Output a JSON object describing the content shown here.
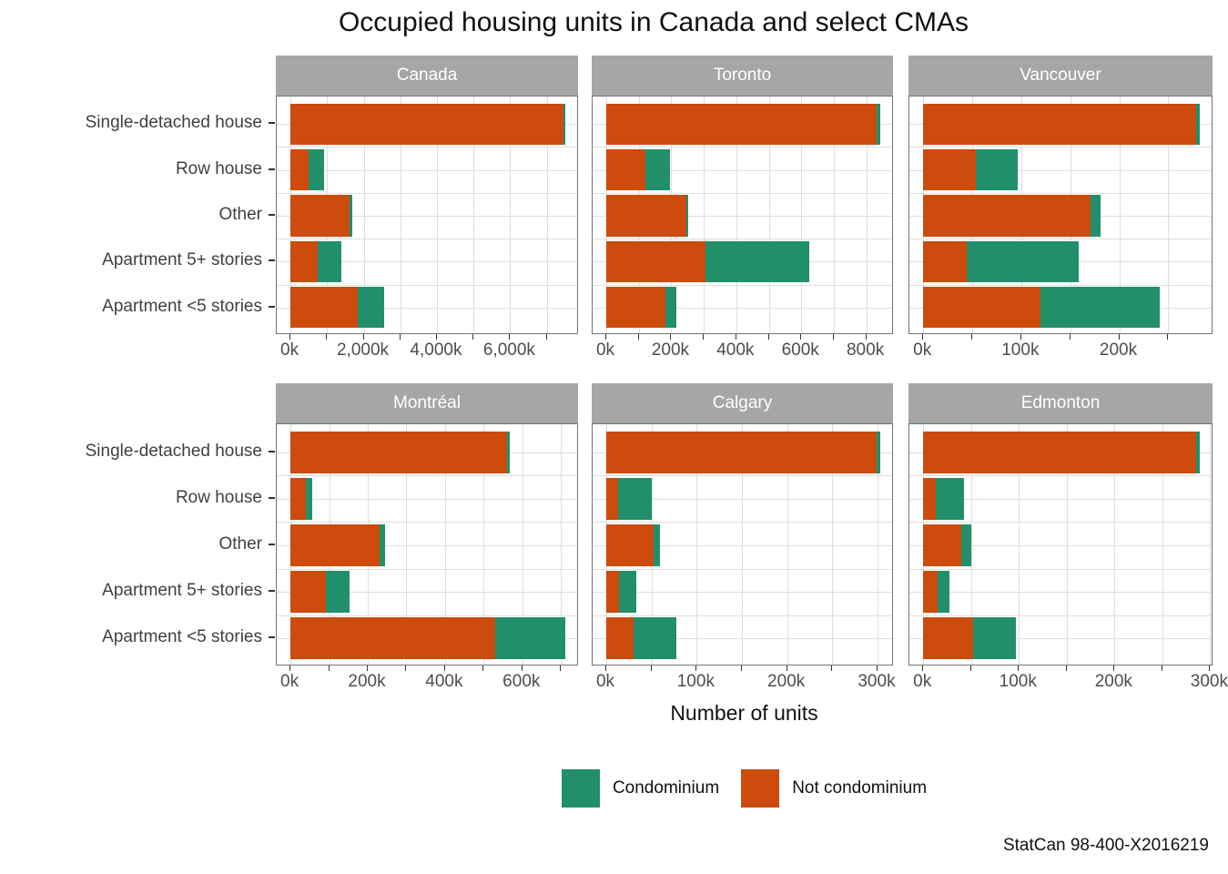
{
  "title": "Occupied housing units in Canada and select CMAs",
  "source_note": "StatCan 98-400-X2016219",
  "axis": {
    "x_title": "Number of units"
  },
  "legend": {
    "items": [
      {
        "label": "Condominium",
        "color": "#21906A"
      },
      {
        "label": "Not condominium",
        "color": "#CC4B0D"
      }
    ]
  },
  "colors": {
    "condominium": "#21906A",
    "not_condominium": "#CC4B0D",
    "strip_background": "#A6A6A6",
    "strip_text": "#FFFFFF",
    "gridline": "#DEDEDE",
    "panel_border": "#737373",
    "axis_text": "#4D4D4D"
  },
  "chart_data": {
    "type": "bar",
    "orientation": "horizontal",
    "stacked": true,
    "units": "thousands of occupied housing units",
    "title": "Occupied housing units in Canada and select CMAs",
    "xlabel": "Number of units",
    "ylabel": "",
    "legend_position": "bottom",
    "grid": true,
    "categories": [
      "Single-detached house",
      "Row house",
      "Other",
      "Apartment 5+ stories",
      "Apartment <5 stories"
    ],
    "series_names": [
      "Not condominium",
      "Condominium"
    ],
    "panels": [
      {
        "name": "Canada",
        "not_condominium_k": [
          7450,
          490,
          1620,
          755,
          1830
        ],
        "condominium_k": [
          55,
          420,
          75,
          645,
          730
        ],
        "x_major_ticks": [
          0,
          2000,
          4000,
          6000
        ],
        "x_major_labels": [
          "0k",
          "2,000k",
          "4,000k",
          "6,000k"
        ],
        "x_minor_ticks": [
          1000,
          3000,
          5000,
          7000
        ]
      },
      {
        "name": "Toronto",
        "not_condominium_k": [
          833,
          121,
          246,
          304,
          181
        ],
        "condominium_k": [
          10,
          76,
          5,
          322,
          34
        ],
        "x_major_ticks": [
          0,
          200,
          400,
          600,
          800
        ],
        "x_major_labels": [
          "0k",
          "200k",
          "400k",
          "600k",
          "800k"
        ],
        "x_minor_ticks": [
          100,
          300,
          500,
          700
        ]
      },
      {
        "name": "Vancouver",
        "not_condominium_k": [
          278,
          54,
          171,
          44,
          120
        ],
        "condominium_k": [
          4,
          42,
          10,
          115,
          121
        ],
        "x_major_ticks": [
          0,
          100,
          200
        ],
        "x_major_labels": [
          "0k",
          "100k",
          "200k"
        ],
        "x_minor_ticks": [
          50,
          150,
          250
        ]
      },
      {
        "name": "Montréal",
        "not_condominium_k": [
          560,
          41,
          230,
          91,
          530
        ],
        "condominium_k": [
          7,
          16,
          14,
          62,
          181
        ],
        "x_major_ticks": [
          0,
          200,
          400,
          600
        ],
        "x_major_labels": [
          "0k",
          "200k",
          "400k",
          "600k"
        ],
        "x_minor_ticks": [
          100,
          300,
          500,
          700
        ]
      },
      {
        "name": "Calgary",
        "not_condominium_k": [
          299,
          13,
          52,
          14,
          30
        ],
        "condominium_k": [
          4,
          37,
          7,
          19,
          47
        ],
        "x_major_ticks": [
          0,
          100,
          200,
          300
        ],
        "x_major_labels": [
          "0k",
          "100k",
          "200k",
          "300k"
        ],
        "x_minor_ticks": [
          50,
          150,
          250
        ]
      },
      {
        "name": "Edmonton",
        "not_condominium_k": [
          285,
          13,
          40,
          15,
          52
        ],
        "condominium_k": [
          4,
          30,
          10,
          12,
          45
        ],
        "x_major_ticks": [
          0,
          100,
          200,
          300
        ],
        "x_major_labels": [
          "0k",
          "100k",
          "200k",
          "300k"
        ],
        "x_minor_ticks": [
          50,
          150,
          250
        ]
      }
    ]
  }
}
